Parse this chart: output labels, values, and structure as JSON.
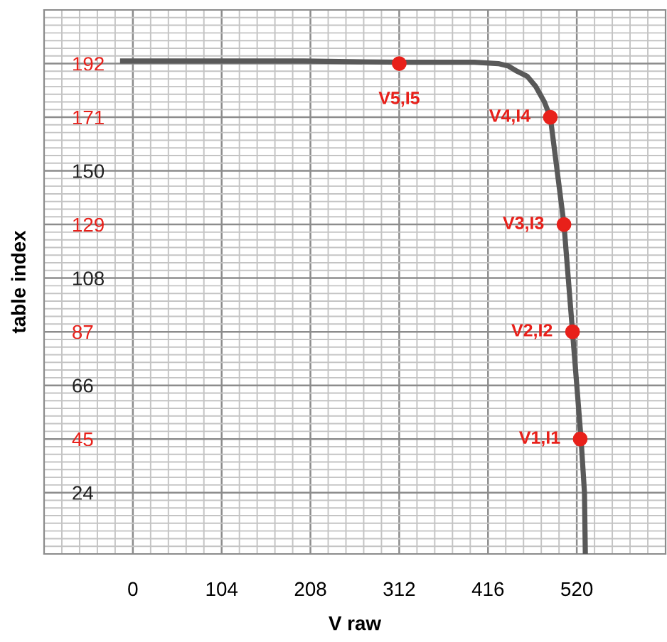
{
  "chart_data": {
    "type": "line",
    "xlabel": "V raw",
    "ylabel": "table index",
    "xlim": [
      -104,
      624
    ],
    "ylim": [
      0,
      213
    ],
    "xticks": [
      0,
      104,
      208,
      312,
      416,
      520
    ],
    "yticks": [
      24,
      45,
      66,
      87,
      108,
      129,
      150,
      171,
      192
    ],
    "grid": true,
    "legend": false,
    "series": [
      {
        "color": "#595959",
        "line_style": "solid",
        "marker": "none",
        "x": [
          -12,
          100,
          200,
          312,
          400,
          428,
          440,
          450,
          462,
          472,
          482,
          489,
          497,
          505,
          510,
          515,
          520,
          525,
          529,
          530
        ],
        "values": [
          193,
          193,
          193,
          192.5,
          192.5,
          192,
          191,
          189,
          187,
          183,
          177,
          171,
          150,
          129,
          108,
          87,
          66,
          45,
          24,
          0
        ]
      },
      {
        "type": "scatter",
        "color": "#e8201a",
        "marker": "circle",
        "x": [
          312,
          489,
          505,
          515,
          524
        ],
        "values": [
          192,
          171,
          129,
          87,
          45
        ]
      }
    ],
    "annotations": [
      {
        "text": "V1,I1",
        "x": 524,
        "y": 45
      },
      {
        "text": "V2,I2",
        "x": 515,
        "y": 87
      },
      {
        "text": "V3,I3",
        "x": 505,
        "y": 129
      },
      {
        "text": "V4,I4",
        "x": 489,
        "y": 171
      },
      {
        "text": "V5,I5",
        "x": 312,
        "y": 192
      }
    ]
  }
}
